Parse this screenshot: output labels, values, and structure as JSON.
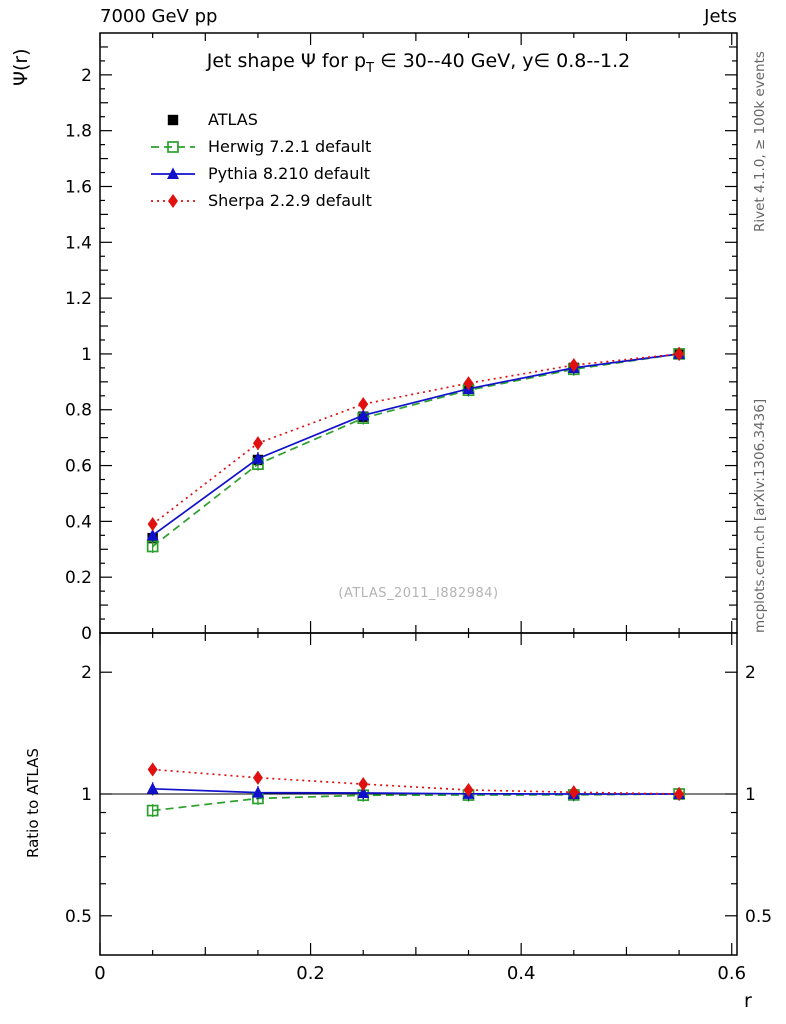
{
  "header": {
    "left": "7000 GeV pp",
    "right": "Jets"
  },
  "titles": {
    "main_prefix": "Jet shape Ψ for p",
    "main_sub": "T",
    "main_suffix": " ∈ 30--40 GeV, y∈ 0.8--1.2"
  },
  "axes": {
    "y_main": "Ψ(r)",
    "y_ratio": "Ratio to ATLAS",
    "x": "r"
  },
  "side_texts": {
    "top": "Rivet 4.1.0, ≥ 100k events",
    "bottom": "mcplots.cern.ch [arXiv:1306.3436]"
  },
  "watermark": "(ATLAS_2011_I882984)",
  "chart_data": [
    {
      "type": "line",
      "panel": "main",
      "title": "Jet shape Ψ for pT ∈ 30--40 GeV, y∈ 0.8--1.2",
      "xlabel": "r",
      "ylabel": "Ψ(r)",
      "xlim": [
        0,
        0.605
      ],
      "ylim": [
        0,
        2.15
      ],
      "xticks": [
        0,
        0.2,
        0.4,
        0.6
      ],
      "yticks": [
        0,
        0.2,
        0.4,
        0.6,
        0.8,
        1,
        1.2,
        1.4,
        1.6,
        1.8,
        2
      ],
      "grid": false,
      "legend_position": "top-left",
      "x": [
        0.05,
        0.15,
        0.25,
        0.35,
        0.45,
        0.55
      ],
      "series": [
        {
          "name": "ATLAS",
          "color": "#000000",
          "marker": "square-filled",
          "line": "none",
          "values": [
            0.34,
            0.62,
            0.775,
            0.875,
            0.95,
            1.0
          ]
        },
        {
          "name": "Herwig 7.2.1 default",
          "color": "#2ca02c",
          "marker": "square-open",
          "line": "dashed",
          "values": [
            0.31,
            0.605,
            0.77,
            0.87,
            0.945,
            1.0
          ]
        },
        {
          "name": "Pythia 8.210 default",
          "color": "#1111cc",
          "marker": "triangle-filled",
          "line": "solid",
          "values": [
            0.35,
            0.625,
            0.78,
            0.875,
            0.95,
            1.0
          ]
        },
        {
          "name": "Sherpa 2.2.9 default",
          "color": "#e01010",
          "marker": "diamond-filled",
          "line": "dotted",
          "values": [
            0.39,
            0.68,
            0.82,
            0.895,
            0.96,
            1.0
          ]
        }
      ]
    },
    {
      "type": "line",
      "panel": "ratio",
      "ylabel": "Ratio to ATLAS",
      "yscale": "log",
      "xlim": [
        0,
        0.605
      ],
      "ylim": [
        0.4,
        2.5
      ],
      "xticks": [
        0,
        0.2,
        0.4,
        0.6
      ],
      "yticks": [
        0.5,
        1,
        2
      ],
      "yticks_minor": [
        0.6,
        0.7,
        0.8,
        0.9
      ],
      "reference_line": 1,
      "x": [
        0.05,
        0.15,
        0.25,
        0.35,
        0.45,
        0.55
      ],
      "series": [
        {
          "name": "Herwig 7.2.1 default",
          "color": "#2ca02c",
          "marker": "square-open",
          "line": "dashed",
          "values": [
            0.91,
            0.975,
            0.993,
            0.994,
            0.995,
            1.0
          ]
        },
        {
          "name": "Pythia 8.210 default",
          "color": "#1111cc",
          "marker": "triangle-filled",
          "line": "solid",
          "values": [
            1.03,
            1.008,
            1.006,
            1.001,
            1.0,
            1.0
          ]
        },
        {
          "name": "Sherpa 2.2.9 default",
          "color": "#e01010",
          "marker": "diamond-filled",
          "line": "dotted",
          "values": [
            1.15,
            1.097,
            1.058,
            1.023,
            1.01,
            1.0
          ]
        }
      ]
    }
  ]
}
